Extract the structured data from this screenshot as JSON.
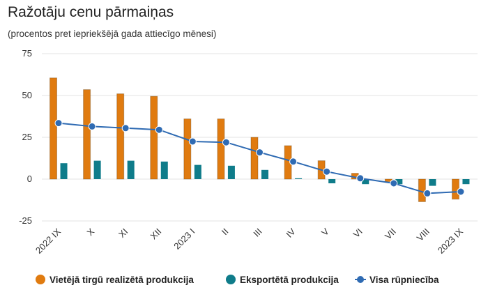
{
  "title": "Ražotāju cenu pārmaiņas",
  "subtitle": "(procentos pret iepriekšējā gada attiecīgo mēnesi)",
  "colors": {
    "domestic": "#e07b10",
    "export": "#0f7c8a",
    "total": "#2f6bb3",
    "grid": "#e3e3e3"
  },
  "chart_data": {
    "type": "bar",
    "title": "Ražotāju cenu pārmaiņas",
    "subtitle": "(procentos pret iepriekšējā gada attiecīgo mēnesi)",
    "categories": [
      "2022 IX",
      "X",
      "XI",
      "XII",
      "2023 I",
      "II",
      "III",
      "IV",
      "V",
      "VI",
      "VII",
      "VIII",
      "2023 IX"
    ],
    "ylim": [
      -25,
      75
    ],
    "yticks": [
      -25,
      0,
      25,
      50,
      75
    ],
    "grid": true,
    "legend_position": "bottom",
    "series": [
      {
        "name": "Vietējā tirgū realizētā produkcija",
        "type": "bar",
        "color": "#e07b10",
        "values": [
          60.5,
          53.5,
          51,
          49.5,
          36,
          36,
          25,
          20,
          11,
          3.5,
          -1.5,
          -13.5,
          -12
        ]
      },
      {
        "name": "Eksportētā produkcija",
        "type": "bar",
        "color": "#0f7c8a",
        "values": [
          9.5,
          11,
          11,
          10.5,
          8.5,
          8,
          5.5,
          0.5,
          -2.5,
          -3,
          -3,
          -4,
          -3
        ]
      },
      {
        "name": "Visa rūpniecība",
        "type": "line",
        "color": "#2f6bb3",
        "values": [
          33.5,
          31.5,
          30.5,
          29.5,
          22.5,
          22,
          16,
          10.5,
          4.5,
          0.5,
          -2.5,
          -8.5,
          -7.5
        ]
      }
    ]
  }
}
